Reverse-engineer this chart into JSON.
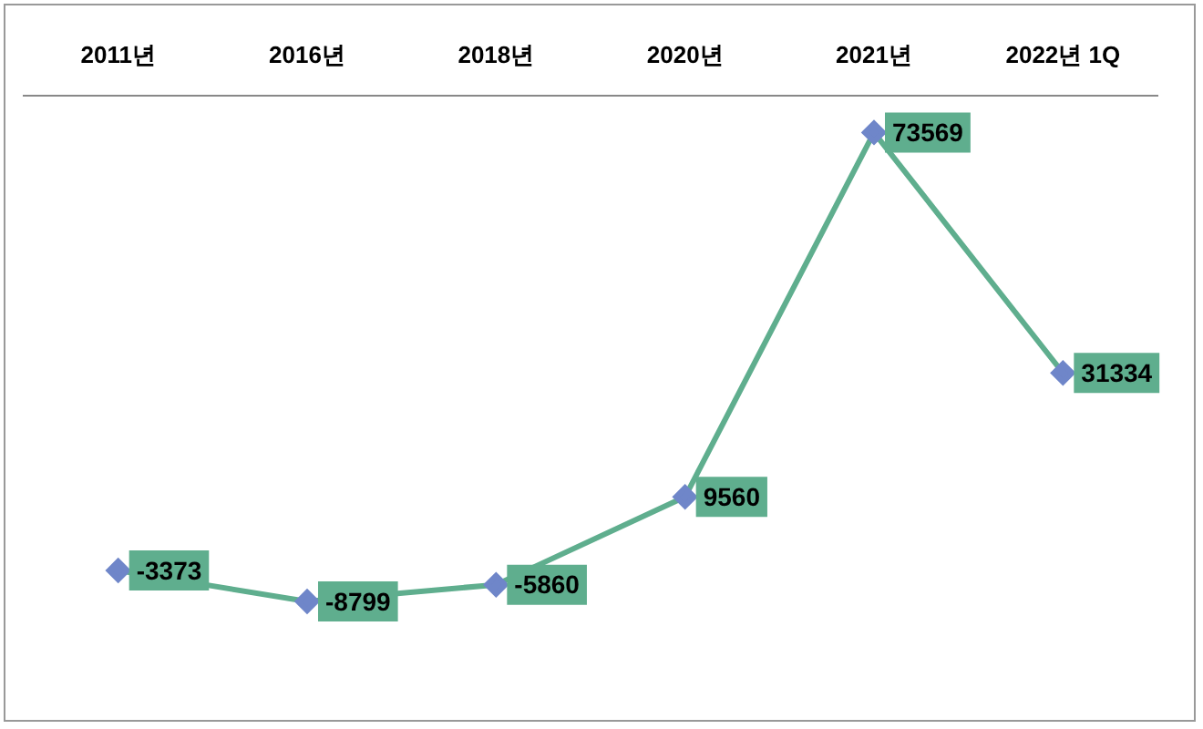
{
  "chart_data": {
    "type": "line",
    "categories": [
      "2011년",
      "2016년",
      "2018년",
      "2020년",
      "2021년",
      "2022년 1Q"
    ],
    "series": [
      {
        "color": "#5fae8e",
        "values": [
          -3373,
          -8799,
          -5860,
          9560,
          73569,
          31334
        ]
      }
    ],
    "data_labels": true,
    "marker": "diamond",
    "legend": false,
    "grid": false,
    "tick_labels": "x"
  }
}
